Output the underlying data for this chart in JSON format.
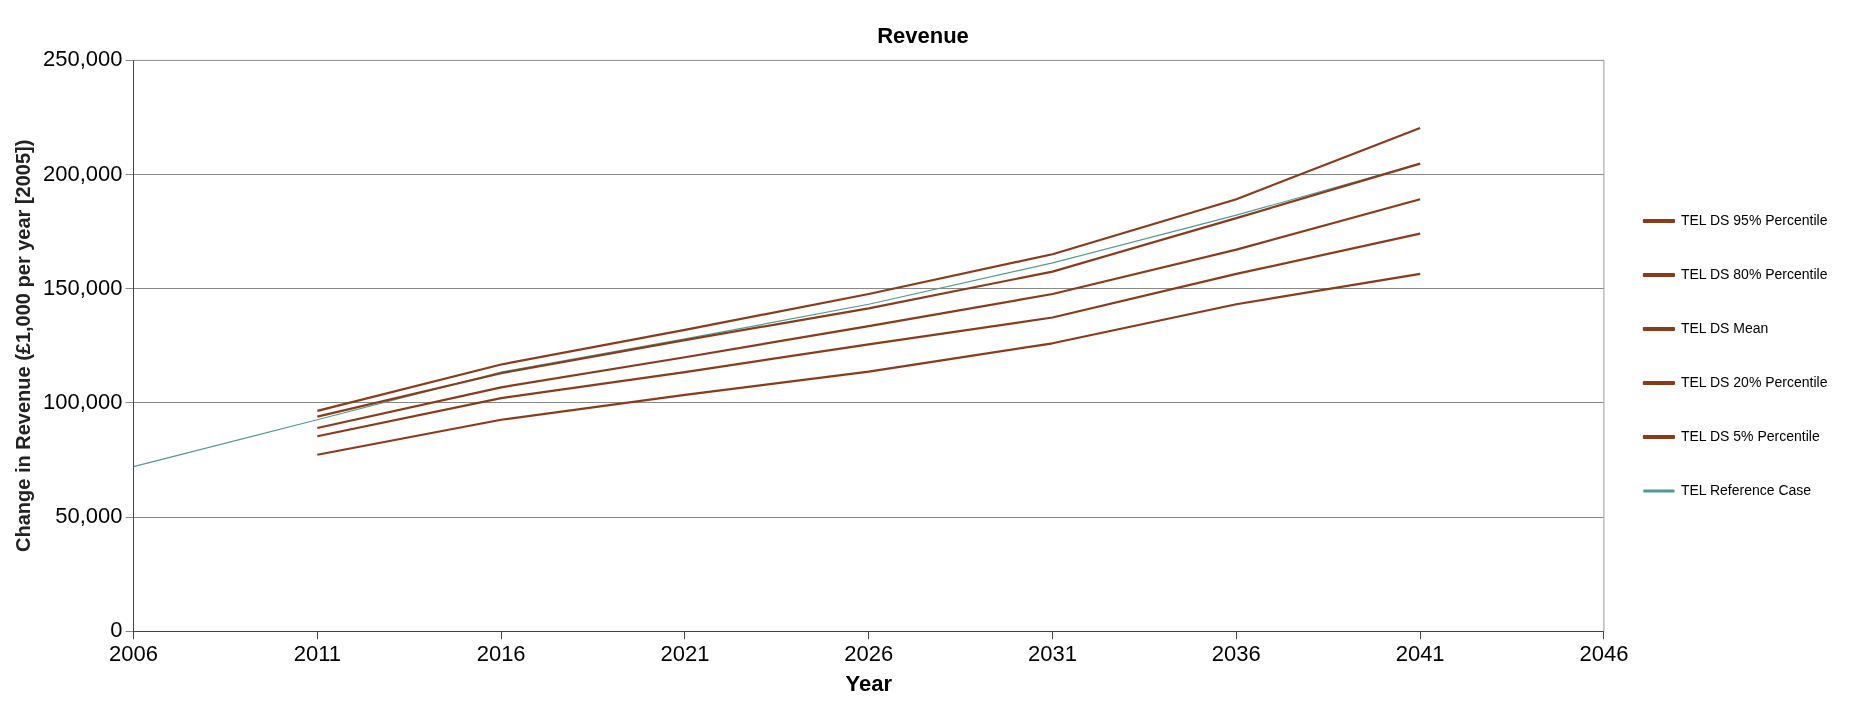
{
  "chart_data": {
    "type": "line",
    "title": "Revenue",
    "xlabel": "Year",
    "ylabel": "Change in Revenue (£1,000 per year [2005])",
    "xlim": [
      2006,
      2046
    ],
    "xticks": [
      2006,
      2011,
      2016,
      2021,
      2026,
      2031,
      2036,
      2041,
      2046
    ],
    "ylim": [
      0,
      250000
    ],
    "yticks": [
      {
        "value": 0,
        "label": "0"
      },
      {
        "value": 50000,
        "label": "50,000"
      },
      {
        "value": 100000,
        "label": "100,000"
      },
      {
        "value": 150000,
        "label": "150,000"
      },
      {
        "value": 200000,
        "label": "200,000"
      },
      {
        "value": 250000,
        "label": "250,000"
      }
    ],
    "grid": "y",
    "legend": "right",
    "marker": "none",
    "line_style": "solid",
    "series": [
      {
        "name": "TEL DS 95% Percentile",
        "color": "#8b3a1a",
        "x": [
          2011,
          2016,
          2021,
          2026,
          2031,
          2036,
          2041
        ],
        "values": [
          96500,
          116800,
          132000,
          147700,
          165100,
          189200,
          220400
        ]
      },
      {
        "name": "TEL DS 80% Percentile",
        "color": "#8b3a1a",
        "x": [
          2011,
          2016,
          2021,
          2026,
          2031,
          2036,
          2041
        ],
        "values": [
          94000,
          113000,
          127500,
          141400,
          157500,
          180900,
          204800
        ]
      },
      {
        "name": "TEL DS Mean",
        "color": "#8b3a1a",
        "x": [
          2011,
          2016,
          2021,
          2026,
          2031,
          2036,
          2041
        ],
        "values": [
          89000,
          106800,
          120000,
          133600,
          147700,
          167100,
          189200
        ]
      },
      {
        "name": "TEL DS 20% Percentile",
        "color": "#8b3a1a",
        "x": [
          2011,
          2016,
          2021,
          2026,
          2031,
          2036,
          2041
        ],
        "values": [
          85400,
          102100,
          113500,
          125600,
          137400,
          156500,
          174100
        ]
      },
      {
        "name": "TEL DS 5% Percentile",
        "color": "#8b3a1a",
        "x": [
          2011,
          2016,
          2021,
          2026,
          2031,
          2036,
          2041
        ],
        "values": [
          77300,
          92600,
          103500,
          113700,
          126100,
          143200,
          156500
        ]
      },
      {
        "name": "TEL Reference Case",
        "color": "#4f9a94",
        "x": [
          2006,
          2011,
          2016,
          2021,
          2026,
          2031,
          2036,
          2041
        ],
        "values": [
          72100,
          92600,
          113500,
          128000,
          143200,
          161300,
          182200,
          204800
        ]
      }
    ]
  }
}
